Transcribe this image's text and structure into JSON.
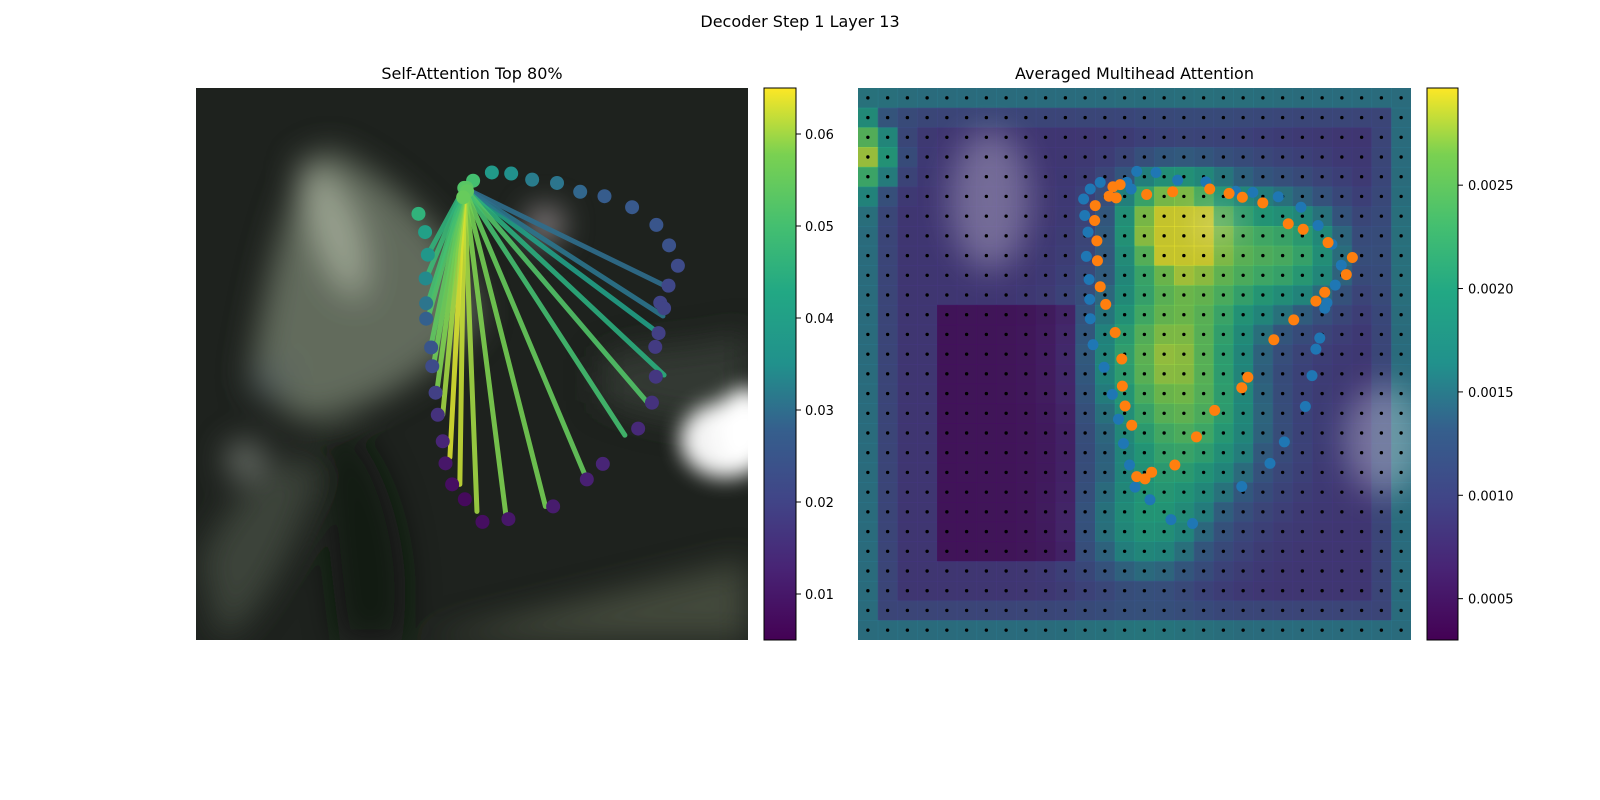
{
  "figure": {
    "suptitle": "Decoder Step 1 Layer 13"
  },
  "chart_data": [
    {
      "type": "scatter",
      "title": "Self-Attention Top 80%",
      "background": "blurred dark photo (bright light at right edge)",
      "colormap": "viridis",
      "colorbar": {
        "min": 0.005,
        "max": 0.065,
        "ticks": [
          0.01,
          0.02,
          0.03,
          0.04,
          0.05,
          0.06
        ]
      },
      "points": [
        [
          0.502,
          0.168,
          0.05
        ],
        [
          0.536,
          0.153,
          0.038
        ],
        [
          0.571,
          0.155,
          0.035
        ],
        [
          0.609,
          0.166,
          0.032
        ],
        [
          0.654,
          0.172,
          0.031
        ],
        [
          0.696,
          0.188,
          0.029
        ],
        [
          0.74,
          0.196,
          0.027
        ],
        [
          0.79,
          0.216,
          0.026
        ],
        [
          0.834,
          0.248,
          0.025
        ],
        [
          0.857,
          0.285,
          0.024
        ],
        [
          0.873,
          0.322,
          0.022
        ],
        [
          0.856,
          0.358,
          0.021
        ],
        [
          0.841,
          0.389,
          0.02
        ],
        [
          0.848,
          0.399,
          0.02
        ],
        [
          0.838,
          0.444,
          0.019
        ],
        [
          0.832,
          0.469,
          0.018
        ],
        [
          0.833,
          0.523,
          0.017
        ],
        [
          0.826,
          0.57,
          0.016
        ],
        [
          0.801,
          0.617,
          0.014
        ],
        [
          0.737,
          0.681,
          0.013
        ],
        [
          0.708,
          0.709,
          0.012
        ],
        [
          0.647,
          0.758,
          0.011
        ],
        [
          0.566,
          0.781,
          0.01
        ],
        [
          0.519,
          0.786,
          0.008
        ],
        [
          0.487,
          0.745,
          0.007
        ],
        [
          0.464,
          0.718,
          0.008
        ],
        [
          0.452,
          0.68,
          0.01
        ],
        [
          0.447,
          0.64,
          0.013
        ],
        [
          0.438,
          0.592,
          0.016
        ],
        [
          0.434,
          0.552,
          0.019
        ],
        [
          0.428,
          0.504,
          0.022
        ],
        [
          0.426,
          0.47,
          0.025
        ],
        [
          0.417,
          0.418,
          0.028
        ],
        [
          0.417,
          0.39,
          0.031
        ],
        [
          0.416,
          0.345,
          0.034
        ],
        [
          0.42,
          0.302,
          0.037
        ],
        [
          0.415,
          0.261,
          0.04
        ],
        [
          0.403,
          0.228,
          0.046
        ],
        [
          0.486,
          0.181,
          0.052
        ],
        [
          0.49,
          0.181,
          0.053
        ],
        [
          0.491,
          0.187,
          0.054
        ],
        [
          0.484,
          0.198,
          0.055
        ]
      ],
      "lines_from": [
        0.486,
        0.181
      ],
      "lines": [
        [
          0.838,
          0.444,
          0.04
        ],
        [
          0.846,
          0.413,
          0.031
        ],
        [
          0.859,
          0.363,
          0.03
        ],
        [
          0.848,
          0.52,
          0.045
        ],
        [
          0.819,
          0.571,
          0.052
        ],
        [
          0.777,
          0.629,
          0.05
        ],
        [
          0.708,
          0.709,
          0.055
        ],
        [
          0.633,
          0.758,
          0.057
        ],
        [
          0.563,
          0.786,
          0.058
        ],
        [
          0.509,
          0.767,
          0.06
        ],
        [
          0.478,
          0.718,
          0.062
        ],
        [
          0.46,
          0.669,
          0.063
        ],
        [
          0.447,
          0.592,
          0.06
        ],
        [
          0.436,
          0.552,
          0.058
        ],
        [
          0.43,
          0.504,
          0.056
        ],
        [
          0.425,
          0.47,
          0.054
        ],
        [
          0.42,
          0.418,
          0.052
        ],
        [
          0.42,
          0.39,
          0.05
        ],
        [
          0.417,
          0.345,
          0.048
        ],
        [
          0.42,
          0.302,
          0.046
        ]
      ]
    },
    {
      "type": "heatmap",
      "title": "Averaged Multihead Attention",
      "colormap": "viridis",
      "colorbar": {
        "min": 0.0003,
        "max": 0.00297,
        "ticks": [
          0.0005,
          0.001,
          0.0015,
          0.002,
          0.0025
        ]
      },
      "grid": {
        "rows": 28,
        "cols": 28
      },
      "overlay": "semi-transparent over blurred photo, black dot at each grid cell center",
      "blue_points": [
        [
          0.486,
          0.171
        ],
        [
          0.504,
          0.151
        ],
        [
          0.539,
          0.153
        ],
        [
          0.578,
          0.167
        ],
        [
          0.629,
          0.17
        ],
        [
          0.683,
          0.187
        ],
        [
          0.714,
          0.189
        ],
        [
          0.76,
          0.197
        ],
        [
          0.801,
          0.216
        ],
        [
          0.832,
          0.249
        ],
        [
          0.857,
          0.283
        ],
        [
          0.874,
          0.321
        ],
        [
          0.863,
          0.357
        ],
        [
          0.848,
          0.389
        ],
        [
          0.844,
          0.399
        ],
        [
          0.835,
          0.453
        ],
        [
          0.828,
          0.473
        ],
        [
          0.821,
          0.521
        ],
        [
          0.809,
          0.577
        ],
        [
          0.771,
          0.641
        ],
        [
          0.745,
          0.68
        ],
        [
          0.694,
          0.722
        ],
        [
          0.605,
          0.789
        ],
        [
          0.566,
          0.782
        ],
        [
          0.528,
          0.746
        ],
        [
          0.501,
          0.723
        ],
        [
          0.491,
          0.683
        ],
        [
          0.48,
          0.644
        ],
        [
          0.471,
          0.6
        ],
        [
          0.46,
          0.555
        ],
        [
          0.445,
          0.506
        ],
        [
          0.425,
          0.465
        ],
        [
          0.42,
          0.418
        ],
        [
          0.419,
          0.383
        ],
        [
          0.418,
          0.347
        ],
        [
          0.413,
          0.305
        ],
        [
          0.416,
          0.261
        ],
        [
          0.41,
          0.231
        ],
        [
          0.408,
          0.201
        ],
        [
          0.42,
          0.183
        ],
        [
          0.438,
          0.171
        ],
        [
          0.494,
          0.183
        ]
      ],
      "orange_points": [
        [
          0.461,
          0.179
        ],
        [
          0.454,
          0.196
        ],
        [
          0.467,
          0.199
        ],
        [
          0.522,
          0.193
        ],
        [
          0.569,
          0.188
        ],
        [
          0.636,
          0.183
        ],
        [
          0.671,
          0.191
        ],
        [
          0.695,
          0.198
        ],
        [
          0.732,
          0.208
        ],
        [
          0.778,
          0.246
        ],
        [
          0.805,
          0.256
        ],
        [
          0.85,
          0.28
        ],
        [
          0.894,
          0.307
        ],
        [
          0.883,
          0.338
        ],
        [
          0.844,
          0.37
        ],
        [
          0.828,
          0.386
        ],
        [
          0.788,
          0.42
        ],
        [
          0.752,
          0.456
        ],
        [
          0.705,
          0.524
        ],
        [
          0.694,
          0.543
        ],
        [
          0.645,
          0.584
        ],
        [
          0.612,
          0.632
        ],
        [
          0.573,
          0.683
        ],
        [
          0.531,
          0.696
        ],
        [
          0.519,
          0.708
        ],
        [
          0.504,
          0.704
        ],
        [
          0.495,
          0.611
        ],
        [
          0.483,
          0.576
        ],
        [
          0.478,
          0.54
        ],
        [
          0.477,
          0.491
        ],
        [
          0.465,
          0.443
        ],
        [
          0.448,
          0.392
        ],
        [
          0.438,
          0.36
        ],
        [
          0.433,
          0.313
        ],
        [
          0.432,
          0.277
        ],
        [
          0.428,
          0.24
        ],
        [
          0.429,
          0.213
        ],
        [
          0.474,
          0.175
        ]
      ]
    }
  ]
}
